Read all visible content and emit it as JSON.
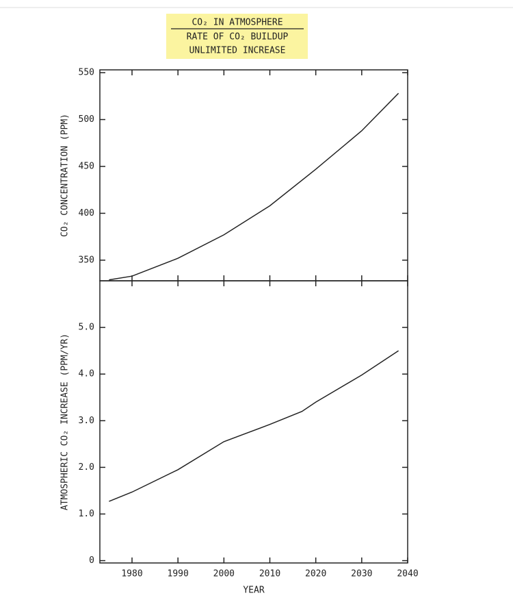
{
  "header": {
    "lines": [
      "CO₂ IN ATMOSPHERE",
      "RATE OF CO₂ BUILDUP",
      "UNLIMITED INCREASE"
    ]
  },
  "chart_data": [
    {
      "type": "line",
      "ylabel": "CO₂ CONCENTRATION (PPM)",
      "x": [
        1975,
        1980,
        1990,
        2000,
        2010,
        2020,
        2030,
        2038
      ],
      "series": [
        {
          "name": "CO₂ concentration",
          "color": "#222222",
          "values": [
            329,
            333,
            352,
            377,
            408,
            447,
            488,
            528
          ]
        }
      ],
      "xlim": [
        1973,
        2040
      ],
      "xticks": [
        1980,
        1990,
        2000,
        2010,
        2020,
        2030,
        2040
      ],
      "show_xtick_labels": false,
      "ylim": [
        328,
        553
      ],
      "yticks": [
        350,
        400,
        450,
        500,
        550
      ]
    },
    {
      "type": "line",
      "ylabel": "ATMOSPHERIC CO₂ INCREASE (PPM/YR)",
      "xlabel": "YEAR",
      "x": [
        1975,
        1980,
        1990,
        2000,
        2010,
        2017,
        2020,
        2030,
        2038
      ],
      "series": [
        {
          "name": "CO₂ increase",
          "color": "#222222",
          "values": [
            1.27,
            1.47,
            1.95,
            2.55,
            2.92,
            3.2,
            3.4,
            3.98,
            4.5
          ]
        }
      ],
      "xlim": [
        1973,
        2040
      ],
      "xticks": [
        1980,
        1990,
        2000,
        2010,
        2020,
        2030,
        2040
      ],
      "show_xtick_labels": true,
      "ylim": [
        -0.05,
        6.0
      ],
      "yticks": [
        0,
        {
          "value": 1,
          "label": "1.0"
        },
        {
          "value": 2,
          "label": "2.0"
        },
        {
          "value": 3,
          "label": "3.0"
        },
        {
          "value": 4,
          "label": "4.0"
        },
        {
          "value": 5,
          "label": "5.0"
        }
      ]
    }
  ]
}
